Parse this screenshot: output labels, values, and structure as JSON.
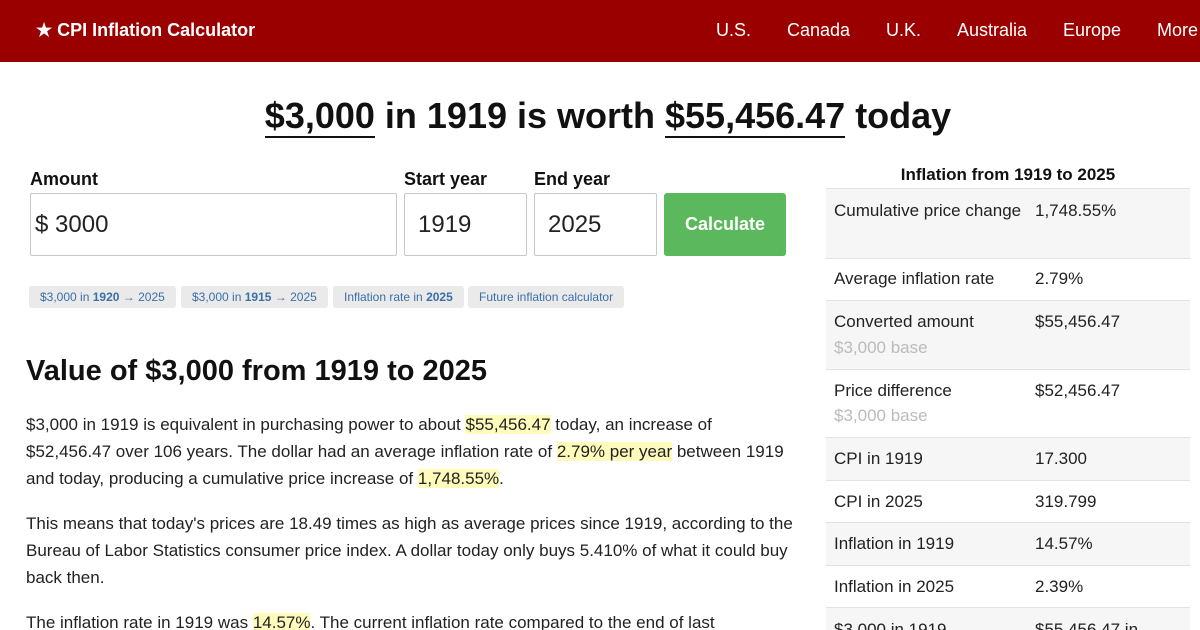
{
  "header": {
    "brand": "★ CPI Inflation Calculator",
    "nav": [
      "U.S.",
      "Canada",
      "U.K.",
      "Australia",
      "Europe",
      "More"
    ]
  },
  "headline": {
    "amount": "$3,000",
    "mid": " in 1919 is worth ",
    "worth": "$55,456.47",
    "tail": " today"
  },
  "form": {
    "amount_label": "Amount",
    "currency_symbol": "$",
    "amount_value": "3000",
    "start_label": "Start year",
    "start_value": "1919",
    "end_label": "End year",
    "end_value": "2025",
    "calculate_label": "Calculate"
  },
  "quick_links": [
    {
      "pre": "$3,000 in ",
      "bold": "1920",
      "post": " → 2025"
    },
    {
      "pre": "$3,000 in ",
      "bold": "1915",
      "post": " → 2025"
    },
    {
      "pre": "Inflation rate in ",
      "bold": "2025",
      "post": ""
    },
    {
      "pre": "Future inflation calculator",
      "bold": "",
      "post": ""
    }
  ],
  "article": {
    "heading": "Value of $3,000 from 1919 to 2025",
    "p1": {
      "a": "$3,000 in 1919 is equivalent in purchasing power to about ",
      "h1": "$55,456.47",
      "b": " today, an increase of $52,456.47 over 106 years. The dollar had an average inflation rate of ",
      "h2": "2.79% per year",
      "c": " between 1919 and today, producing a cumulative price increase of ",
      "h3": "1,748.55%",
      "d": "."
    },
    "p2": "This means that today's prices are 18.49 times as high as average prices since 1919, according to the Bureau of Labor Statistics consumer price index. A dollar today only buys 5.410% of what it could buy back then.",
    "p3": {
      "a": "The inflation rate in 1919 was ",
      "h1": "14.57%",
      "b": ". The current inflation rate compared to the end of last"
    }
  },
  "sidebar": {
    "title": "Inflation from 1919 to 2025",
    "rows": [
      {
        "label": "Cumulative price change",
        "value": "1,748.55%",
        "sub": ""
      },
      {
        "label": "Average inflation rate",
        "value": "2.79%",
        "sub": ""
      },
      {
        "label": "Converted amount",
        "value": "$55,456.47",
        "sub": "$3,000 base"
      },
      {
        "label": "Price difference",
        "value": "$52,456.47",
        "sub": "$3,000 base"
      },
      {
        "label": "CPI in 1919",
        "value": "17.300",
        "sub": ""
      },
      {
        "label": "CPI in 2025",
        "value": "319.799",
        "sub": ""
      },
      {
        "label": "Inflation in 1919",
        "value": "14.57%",
        "sub": ""
      },
      {
        "label": "Inflation in 2025",
        "value": "2.39%",
        "sub": ""
      },
      {
        "label": "$3,000 in 1919",
        "value": "$55,456.47 in",
        "sub": ""
      }
    ]
  }
}
